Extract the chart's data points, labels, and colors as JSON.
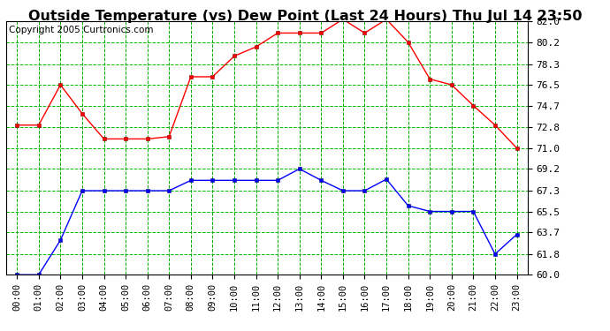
{
  "title": "Outside Temperature (vs) Dew Point (Last 24 Hours) Thu Jul 14 23:50",
  "copyright": "Copyright 2005 Curtronics.com",
  "hours": [
    "00:00",
    "01:00",
    "02:00",
    "03:00",
    "04:00",
    "05:00",
    "06:00",
    "07:00",
    "08:00",
    "09:00",
    "10:00",
    "11:00",
    "12:00",
    "13:00",
    "14:00",
    "15:00",
    "16:00",
    "17:00",
    "18:00",
    "19:00",
    "20:00",
    "21:00",
    "22:00",
    "23:00"
  ],
  "red_data": [
    73.0,
    73.0,
    76.5,
    74.0,
    71.8,
    71.8,
    71.8,
    72.0,
    77.2,
    77.2,
    79.0,
    79.8,
    81.0,
    81.0,
    81.0,
    82.2,
    81.0,
    82.2,
    80.2,
    77.0,
    76.5,
    74.7,
    73.0,
    71.0
  ],
  "blue_data": [
    60.0,
    60.0,
    63.0,
    67.3,
    67.3,
    67.3,
    67.3,
    67.3,
    68.2,
    68.2,
    68.2,
    68.2,
    68.2,
    69.2,
    68.2,
    67.3,
    67.3,
    68.3,
    66.0,
    65.5,
    65.5,
    65.5,
    61.8,
    63.5
  ],
  "red_color": "#ff0000",
  "blue_color": "#0000ff",
  "bg_color": "#ffffff",
  "plot_bg_color": "#ffffff",
  "grid_color_h": "#00bb00",
  "grid_color_v": "#00aa00",
  "ymin": 60.0,
  "ymax": 82.0,
  "yticks": [
    60.0,
    61.8,
    63.7,
    65.5,
    67.3,
    69.2,
    71.0,
    72.8,
    74.7,
    76.5,
    78.3,
    80.2,
    82.0
  ],
  "title_fontsize": 11.5,
  "copyright_fontsize": 7.5,
  "tick_fontsize": 8
}
